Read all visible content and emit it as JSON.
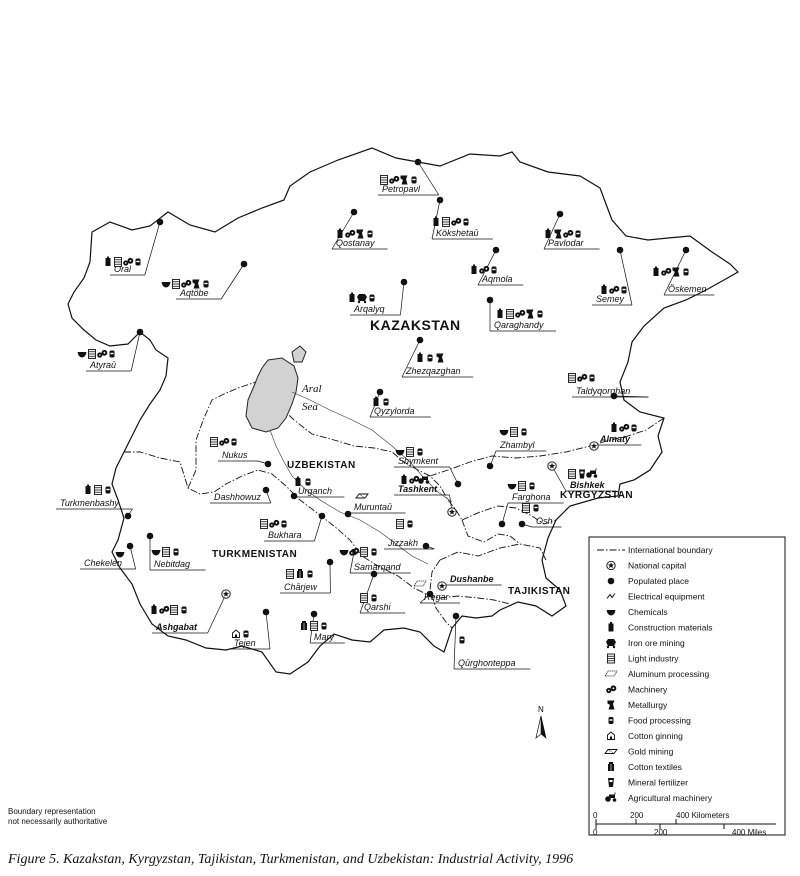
{
  "caption": "Figure 5. Kazakstan, Kyrgyzstan, Tajikistan, Turkmenistan, and Uzbekistan: Industrial Activity, 1996",
  "countries": [
    {
      "key": "kazakstan",
      "label": "KAZAKSTAN"
    },
    {
      "key": "uzbekistan",
      "label": "UZBEKISTAN"
    },
    {
      "key": "turkmenistan",
      "label": "TURKMENISTAN"
    },
    {
      "key": "kyrgyzstan",
      "label": "KYRGYZSTAN"
    },
    {
      "key": "tajikistan",
      "label": "TAJIKISTAN"
    }
  ],
  "seas": {
    "aral_1": "Aral",
    "aral_2": "Sea"
  },
  "cities": [
    {
      "key": "petropavl",
      "label": "Petropavl",
      "capital": false,
      "industries": [
        "light-industry",
        "machinery",
        "metallurgy",
        "food-processing"
      ]
    },
    {
      "key": "qostanay",
      "label": "Qostanay",
      "capital": false,
      "industries": [
        "construction-materials",
        "machinery",
        "metallurgy",
        "food-processing"
      ]
    },
    {
      "key": "kokshetau",
      "label": "Kökshetaū",
      "capital": false,
      "industries": [
        "construction-materials",
        "light-industry",
        "machinery",
        "food-processing"
      ]
    },
    {
      "key": "pavlodar",
      "label": "Pavlodar",
      "capital": false,
      "industries": [
        "construction-materials",
        "metallurgy",
        "machinery",
        "food-processing"
      ]
    },
    {
      "key": "oral",
      "label": "Oral",
      "capital": false,
      "industries": [
        "construction-materials",
        "light-industry",
        "machinery",
        "food-processing"
      ]
    },
    {
      "key": "aqtobe",
      "label": "Aqtöbe",
      "capital": false,
      "industries": [
        "chemicals",
        "light-industry",
        "machinery",
        "metallurgy",
        "food-processing"
      ]
    },
    {
      "key": "aqmola",
      "label": "Aqmola",
      "capital": false,
      "industries": [
        "construction-materials",
        "machinery",
        "food-processing"
      ]
    },
    {
      "key": "semey",
      "label": "Semey",
      "capital": false,
      "industries": [
        "construction-materials",
        "machinery",
        "food-processing"
      ]
    },
    {
      "key": "oskemen",
      "label": "Öskemen",
      "capital": false,
      "industries": [
        "construction-materials",
        "machinery",
        "metallurgy",
        "food-processing"
      ]
    },
    {
      "key": "arqalyq",
      "label": "Arqalyq",
      "capital": false,
      "industries": [
        "construction-materials",
        "iron-ore-mining",
        "food-processing"
      ]
    },
    {
      "key": "qaraghandy",
      "label": "Qaraghandy",
      "capital": false,
      "industries": [
        "construction-materials",
        "light-industry",
        "machinery",
        "metallurgy",
        "food-processing"
      ]
    },
    {
      "key": "atyrau",
      "label": "Atyraū",
      "capital": false,
      "industries": [
        "chemicals",
        "light-industry",
        "machinery",
        "food-processing"
      ]
    },
    {
      "key": "zhezqazghan",
      "label": "Zhezqazghan",
      "capital": false,
      "industries": [
        "construction-materials",
        "food-processing",
        "metallurgy"
      ]
    },
    {
      "key": "taldyqorghan",
      "label": "Taldyqorghan",
      "capital": false,
      "industries": [
        "light-industry",
        "machinery",
        "food-processing"
      ]
    },
    {
      "key": "qyzylorda",
      "label": "Qyzylorda",
      "capital": false,
      "industries": [
        "construction-materials",
        "food-processing"
      ]
    },
    {
      "key": "almaty",
      "label": "Almaty",
      "capital": true,
      "industries": [
        "construction-materials",
        "machinery",
        "food-processing"
      ]
    },
    {
      "key": "zhambyl",
      "label": "Zhambyl",
      "capital": false,
      "industries": [
        "chemicals",
        "light-industry",
        "food-processing"
      ]
    },
    {
      "key": "nukus",
      "label": "Nukus",
      "capital": false,
      "industries": [
        "light-industry",
        "machinery",
        "food-processing"
      ]
    },
    {
      "key": "shymkent",
      "label": "Shymkent",
      "capital": false,
      "industries": [
        "chemicals",
        "light-industry",
        "food-processing"
      ]
    },
    {
      "key": "tashkent",
      "label": "Tashkent",
      "capital": true,
      "industries": [
        "construction-materials",
        "machinery",
        "agricultural-machinery"
      ]
    },
    {
      "key": "bishkek",
      "label": "Bishkek",
      "capital": true,
      "industries": [
        "light-industry",
        "mineral-fertilizer",
        "agricultural-machinery"
      ]
    },
    {
      "key": "urganch",
      "label": "Urganch",
      "capital": false,
      "industries": [
        "construction-materials",
        "food-processing"
      ]
    },
    {
      "key": "turkmenbashy",
      "label": "Turkmenbashy",
      "capital": false,
      "industries": [
        "construction-materials",
        "light-industry",
        "food-processing"
      ]
    },
    {
      "key": "dashhowuz",
      "label": "Dashhowuz",
      "capital": false,
      "industries": []
    },
    {
      "key": "muruntau",
      "label": "Muruntaū",
      "capital": false,
      "industries": [
        "gold-mining"
      ]
    },
    {
      "key": "farghona",
      "label": "Farghona",
      "capital": false,
      "industries": [
        "chemicals",
        "light-industry",
        "food-processing"
      ]
    },
    {
      "key": "osh",
      "label": "Osh",
      "capital": false,
      "industries": [
        "light-industry",
        "food-processing"
      ]
    },
    {
      "key": "bukhara",
      "label": "Bukhara",
      "capital": false,
      "industries": [
        "light-industry",
        "machinery",
        "food-processing"
      ]
    },
    {
      "key": "jizzakh",
      "label": "Jizzakh",
      "capital": false,
      "industries": [
        "light-industry",
        "food-processing"
      ]
    },
    {
      "key": "chekelen",
      "label": "Chekelen",
      "capital": false,
      "industries": [
        "chemicals"
      ]
    },
    {
      "key": "nebitdag",
      "label": "Nebitdag",
      "capital": false,
      "industries": [
        "chemicals",
        "light-industry",
        "food-processing"
      ]
    },
    {
      "key": "samarqand",
      "label": "Samarqand",
      "capital": false,
      "industries": [
        "chemicals",
        "machinery",
        "light-industry",
        "food-processing"
      ]
    },
    {
      "key": "charjew",
      "label": "Chārjew",
      "capital": false,
      "industries": [
        "light-industry",
        "cotton-textiles",
        "food-processing"
      ]
    },
    {
      "key": "dushanbe",
      "label": "Dushanbe",
      "capital": true,
      "industries": []
    },
    {
      "key": "regar",
      "label": "Regar",
      "capital": false,
      "industries": [
        "aluminum-processing"
      ]
    },
    {
      "key": "ashgabat",
      "label": "Ashgabat",
      "capital": true,
      "industries": [
        "construction-materials",
        "machinery",
        "light-industry",
        "food-processing"
      ]
    },
    {
      "key": "qarshi",
      "label": "Qarshi",
      "capital": false,
      "industries": [
        "light-industry",
        "food-processing"
      ]
    },
    {
      "key": "mary",
      "label": "Mary",
      "capital": false,
      "industries": [
        "cotton-textiles",
        "light-industry",
        "food-processing"
      ]
    },
    {
      "key": "tejen",
      "label": "Tejen",
      "capital": false,
      "industries": [
        "cotton-ginning",
        "food-processing"
      ]
    },
    {
      "key": "qurghonteppa",
      "label": "Qūrghonteppa",
      "capital": false,
      "industries": [
        "food-processing"
      ]
    }
  ],
  "legend": {
    "items": [
      {
        "key": "international-boundary",
        "label": "International boundary"
      },
      {
        "key": "national-capital",
        "label": "National capital"
      },
      {
        "key": "populated-place",
        "label": "Populated place"
      },
      {
        "key": "electrical-equipment",
        "label": "Electrical equipment"
      },
      {
        "key": "chemicals",
        "label": "Chemicals"
      },
      {
        "key": "construction-materials",
        "label": "Construction materials"
      },
      {
        "key": "iron-ore-mining",
        "label": "Iron ore mining"
      },
      {
        "key": "light-industry",
        "label": "Light industry"
      },
      {
        "key": "aluminum-processing",
        "label": "Aluminum processing"
      },
      {
        "key": "machinery",
        "label": "Machinery"
      },
      {
        "key": "metallurgy",
        "label": "Metallurgy"
      },
      {
        "key": "food-processing",
        "label": "Food processing"
      },
      {
        "key": "cotton-ginning",
        "label": "Cotton ginning"
      },
      {
        "key": "gold-mining",
        "label": "Gold mining"
      },
      {
        "key": "cotton-textiles",
        "label": "Cotton textiles"
      },
      {
        "key": "mineral-fertilizer",
        "label": "Mineral fertilizer"
      },
      {
        "key": "agricultural-machinery",
        "label": "Agricultural machinery"
      }
    ]
  },
  "scale": {
    "km_ticks": [
      "0",
      "200",
      "400 Kilometers"
    ],
    "mi_ticks": [
      "0",
      "200",
      "400 Miles"
    ]
  },
  "north": "N",
  "note_line1": "Boundary representation",
  "note_line2": "not necessarily authoritative"
}
